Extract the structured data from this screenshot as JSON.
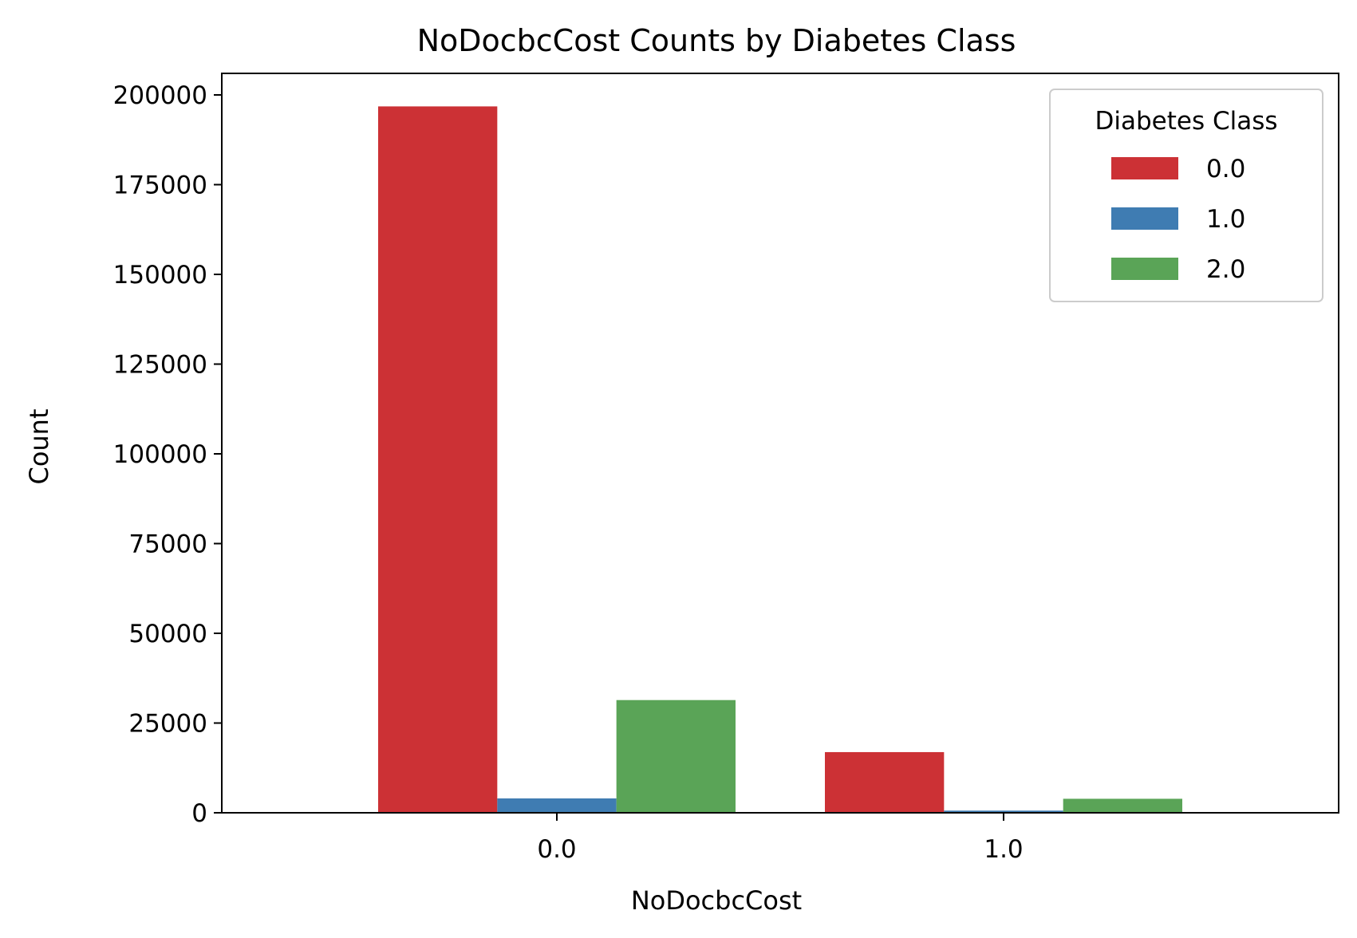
{
  "chart_data": {
    "type": "bar",
    "title": "NoDocbcCost Counts by Diabetes Class",
    "xlabel": "NoDocbcCost",
    "ylabel": "Count",
    "categories": [
      "0.0",
      "1.0"
    ],
    "ylim": [
      0,
      206000
    ],
    "yticks": [
      0,
      25000,
      50000,
      75000,
      100000,
      125000,
      150000,
      175000,
      200000
    ],
    "grid": false,
    "legend": {
      "title": "Diabetes Class",
      "placement": "top-right"
    },
    "series": [
      {
        "name": "0.0",
        "color": "#cc3135",
        "values": [
          196800,
          16900
        ]
      },
      {
        "name": "1.0",
        "color": "#3f7cb2",
        "values": [
          4000,
          600
        ]
      },
      {
        "name": "2.0",
        "color": "#5aa457",
        "values": [
          31400,
          3900
        ]
      }
    ]
  }
}
